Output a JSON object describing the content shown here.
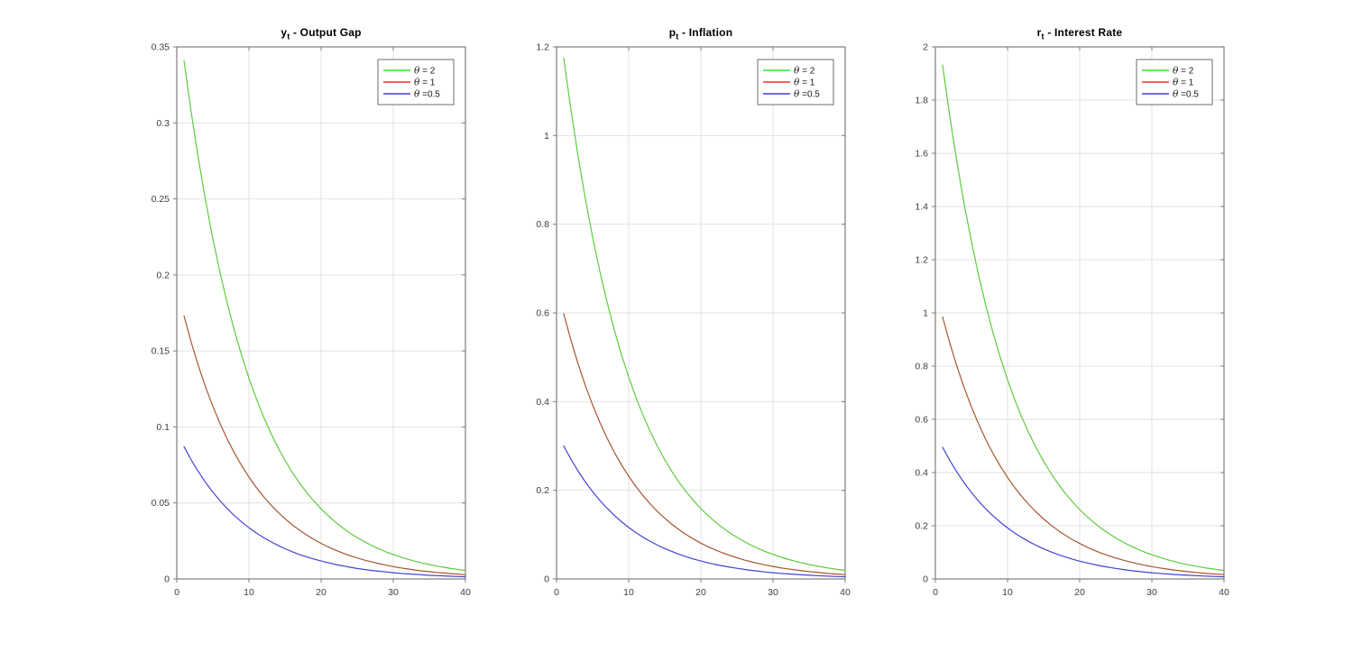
{
  "figure": {
    "background": "#ffffff",
    "kind": "matlab-style impulse response figure, 3 subplots"
  },
  "chart_style": {
    "box_color": "#7d7d7d",
    "grid_color": "#e2e2e2",
    "tick_label_color": "#3f3f3f",
    "title_color": "#000000",
    "legend_border_color": "#6e6e6e",
    "legend_background": "#ffffff"
  },
  "chart_data": [
    {
      "type": "line",
      "title": "y_t - Output Gap",
      "title_parts": {
        "var": "y",
        "sub": "t",
        "rest": " - Output Gap"
      },
      "xlabel": "",
      "ylabel": "",
      "xlim": [
        0,
        40
      ],
      "ylim": [
        0,
        0.35
      ],
      "grid": true,
      "legend_position": "top-right-inside",
      "xticks": [
        0,
        10,
        20,
        30,
        40
      ],
      "xtick_labels": [
        "0",
        "10",
        "20",
        "30",
        "40"
      ],
      "yticks": [
        0,
        0.05,
        0.1,
        0.15,
        0.2,
        0.25,
        0.3,
        0.35
      ],
      "ytick_labels": [
        "0",
        "0.05",
        "0.1",
        "0.15",
        "0.2",
        "0.25",
        "0.3",
        "0.35"
      ],
      "x": [
        1,
        2,
        3,
        4,
        5,
        6,
        7,
        8,
        9,
        10,
        11,
        12,
        13,
        14,
        15,
        16,
        17,
        18,
        19,
        20,
        21,
        22,
        23,
        24,
        25,
        26,
        27,
        28,
        29,
        30,
        31,
        32,
        33,
        34,
        35,
        36,
        37,
        38,
        39,
        40
      ],
      "series": [
        {
          "name": "θ = 2",
          "slug": "theta-2",
          "legend_sym": "θ",
          "legend_rest": " = 2",
          "legend_color": "#2ee82e",
          "line_color": "#5ecb3f",
          "values": [
            0.341,
            0.3069,
            0.2762,
            0.2486,
            0.2237,
            0.2014,
            0.1812,
            0.1631,
            0.1468,
            0.1321,
            0.1189,
            0.107,
            0.0963,
            0.0867,
            0.078,
            0.0702,
            0.0632,
            0.0569,
            0.0512,
            0.0461,
            0.0415,
            0.0373,
            0.0336,
            0.0302,
            0.0272,
            0.0245,
            0.022,
            0.0198,
            0.0178,
            0.0161,
            0.0145,
            0.013,
            0.0117,
            0.0105,
            0.0095,
            0.0085,
            0.0077,
            0.0069,
            0.0062,
            0.0056
          ]
        },
        {
          "name": "θ = 1",
          "slug": "theta-1",
          "legend_sym": "θ",
          "legend_rest": " = 1",
          "legend_color": "#ff2a2a",
          "line_color": "#a5562f",
          "values": [
            0.173,
            0.1557,
            0.1401,
            0.1261,
            0.1135,
            0.1022,
            0.0919,
            0.0827,
            0.0745,
            0.067,
            0.0603,
            0.0543,
            0.0489,
            0.044,
            0.0396,
            0.0356,
            0.0321,
            0.0289,
            0.026,
            0.0234,
            0.021,
            0.0189,
            0.017,
            0.0153,
            0.0138,
            0.0124,
            0.0112,
            0.0101,
            0.0091,
            0.0081,
            0.0073,
            0.0066,
            0.0059,
            0.0053,
            0.0048,
            0.0043,
            0.0039,
            0.0035,
            0.0032,
            0.0028
          ]
        },
        {
          "name": "θ =0.5",
          "slug": "theta-0p5",
          "legend_sym": "θ",
          "legend_rest": " =0.5",
          "legend_color": "#3c3cf0",
          "line_color": "#4343cf",
          "values": [
            0.087,
            0.0783,
            0.0705,
            0.0634,
            0.0571,
            0.0514,
            0.0462,
            0.0416,
            0.0375,
            0.0337,
            0.0303,
            0.0273,
            0.0246,
            0.0221,
            0.0199,
            0.0179,
            0.0161,
            0.0145,
            0.0131,
            0.0118,
            0.0106,
            0.0095,
            0.0086,
            0.0077,
            0.0069,
            0.0062,
            0.0056,
            0.0051,
            0.0046,
            0.0041,
            0.0037,
            0.0033,
            0.003,
            0.0027,
            0.0024,
            0.0022,
            0.002,
            0.0018,
            0.0016,
            0.0014
          ]
        }
      ]
    },
    {
      "type": "line",
      "title": "p_t - Inflation",
      "title_parts": {
        "var": "p",
        "sub": "t",
        "rest": " - Inflation"
      },
      "xlabel": "",
      "ylabel": "",
      "xlim": [
        0,
        40
      ],
      "ylim": [
        0,
        1.2
      ],
      "grid": true,
      "legend_position": "top-right-inside",
      "xticks": [
        0,
        10,
        20,
        30,
        40
      ],
      "xtick_labels": [
        "0",
        "10",
        "20",
        "30",
        "40"
      ],
      "yticks": [
        0,
        0.2,
        0.4,
        0.6,
        0.8,
        1,
        1.2
      ],
      "ytick_labels": [
        "0",
        "0.2",
        "0.4",
        "0.6",
        "0.8",
        "1",
        "1.2"
      ],
      "x": [
        1,
        2,
        3,
        4,
        5,
        6,
        7,
        8,
        9,
        10,
        11,
        12,
        13,
        14,
        15,
        16,
        17,
        18,
        19,
        20,
        21,
        22,
        23,
        24,
        25,
        26,
        27,
        28,
        29,
        30,
        31,
        32,
        33,
        34,
        35,
        36,
        37,
        38,
        39,
        40
      ],
      "series": [
        {
          "name": "θ = 2",
          "slug": "theta-2",
          "legend_sym": "θ",
          "legend_rest": " = 2",
          "legend_color": "#2ee82e",
          "line_color": "#5ecb3f",
          "values": [
            1.175,
            1.0575,
            0.9518,
            0.8566,
            0.7709,
            0.6938,
            0.6244,
            0.562,
            0.5058,
            0.4552,
            0.4097,
            0.3687,
            0.3319,
            0.2987,
            0.2688,
            0.2419,
            0.2177,
            0.196,
            0.1764,
            0.1587,
            0.1429,
            0.1286,
            0.1157,
            0.1041,
            0.0937,
            0.0844,
            0.0759,
            0.0683,
            0.0615,
            0.0553,
            0.0498,
            0.0448,
            0.0403,
            0.0363,
            0.0327,
            0.0294,
            0.0265,
            0.0238,
            0.0214,
            0.0193
          ]
        },
        {
          "name": "θ = 1",
          "slug": "theta-1",
          "legend_sym": "θ",
          "legend_rest": " = 1",
          "legend_color": "#ff2a2a",
          "line_color": "#a5562f",
          "values": [
            0.598,
            0.5382,
            0.4844,
            0.4359,
            0.3923,
            0.3531,
            0.3178,
            0.286,
            0.2574,
            0.2317,
            0.2085,
            0.1877,
            0.1689,
            0.152,
            0.1368,
            0.1231,
            0.1108,
            0.0997,
            0.0898,
            0.0808,
            0.0727,
            0.0654,
            0.0589,
            0.053,
            0.0477,
            0.0429,
            0.0386,
            0.0348,
            0.0313,
            0.0282,
            0.0253,
            0.0228,
            0.0205,
            0.0185,
            0.0166,
            0.015,
            0.0135,
            0.0121,
            0.0109,
            0.0098
          ]
        },
        {
          "name": "θ =0.5",
          "slug": "theta-0p5",
          "legend_sym": "θ",
          "legend_rest": " =0.5",
          "legend_color": "#3c3cf0",
          "line_color": "#4343cf",
          "values": [
            0.3,
            0.27,
            0.243,
            0.2187,
            0.1968,
            0.1771,
            0.1594,
            0.1435,
            0.1291,
            0.1162,
            0.1046,
            0.0941,
            0.0847,
            0.0763,
            0.0686,
            0.0618,
            0.0556,
            0.05,
            0.045,
            0.0405,
            0.0365,
            0.0328,
            0.0295,
            0.0266,
            0.0239,
            0.0215,
            0.0194,
            0.0174,
            0.0157,
            0.0141,
            0.0127,
            0.0114,
            0.0103,
            0.0093,
            0.0083,
            0.0075,
            0.0068,
            0.0061,
            0.0055,
            0.0049
          ]
        }
      ]
    },
    {
      "type": "line",
      "title": "r_t - Interest Rate",
      "title_parts": {
        "var": "r",
        "sub": "t",
        "rest": " - Interest Rate"
      },
      "xlabel": "",
      "ylabel": "",
      "xlim": [
        0,
        40
      ],
      "ylim": [
        0,
        2
      ],
      "grid": true,
      "legend_position": "top-right-inside",
      "xticks": [
        0,
        10,
        20,
        30,
        40
      ],
      "xtick_labels": [
        "0",
        "10",
        "20",
        "30",
        "40"
      ],
      "yticks": [
        0,
        0.2,
        0.4,
        0.6,
        0.8,
        1,
        1.2,
        1.4,
        1.6,
        1.8,
        2
      ],
      "ytick_labels": [
        "0",
        "0.2",
        "0.4",
        "0.6",
        "0.8",
        "1",
        "1.2",
        "1.4",
        "1.6",
        "1.8",
        "2"
      ],
      "x": [
        1,
        2,
        3,
        4,
        5,
        6,
        7,
        8,
        9,
        10,
        11,
        12,
        13,
        14,
        15,
        16,
        17,
        18,
        19,
        20,
        21,
        22,
        23,
        24,
        25,
        26,
        27,
        28,
        29,
        30,
        31,
        32,
        33,
        34,
        35,
        36,
        37,
        38,
        39,
        40
      ],
      "series": [
        {
          "name": "θ = 2",
          "slug": "theta-2",
          "legend_sym": "θ",
          "legend_rest": " = 2",
          "legend_color": "#2ee82e",
          "line_color": "#5ecb3f",
          "values": [
            1.932,
            1.7388,
            1.5649,
            1.4084,
            1.2676,
            1.1408,
            1.0267,
            0.9241,
            0.8317,
            0.7485,
            0.6736,
            0.6063,
            0.5457,
            0.4911,
            0.442,
            0.3978,
            0.358,
            0.3222,
            0.29,
            0.261,
            0.2349,
            0.2114,
            0.1903,
            0.1712,
            0.1541,
            0.1387,
            0.1248,
            0.1123,
            0.1011,
            0.091,
            0.0819,
            0.0737,
            0.0663,
            0.0597,
            0.0537,
            0.0484,
            0.0435,
            0.0392,
            0.0353,
            0.0317
          ]
        },
        {
          "name": "θ = 1",
          "slug": "theta-1",
          "legend_sym": "θ",
          "legend_rest": " = 1",
          "legend_color": "#ff2a2a",
          "line_color": "#a5562f",
          "values": [
            0.985,
            0.8865,
            0.7979,
            0.7181,
            0.6463,
            0.5816,
            0.5235,
            0.4711,
            0.424,
            0.3816,
            0.3434,
            0.3091,
            0.2782,
            0.2504,
            0.2253,
            0.2028,
            0.1825,
            0.1643,
            0.1478,
            0.1331,
            0.1198,
            0.1078,
            0.097,
            0.0873,
            0.0786,
            0.0707,
            0.0636,
            0.0573,
            0.0515,
            0.0464,
            0.0418,
            0.0376,
            0.0338,
            0.0304,
            0.0274,
            0.0247,
            0.0222,
            0.02,
            0.018,
            0.0162
          ]
        },
        {
          "name": "θ =0.5",
          "slug": "theta-0p5",
          "legend_sym": "θ",
          "legend_rest": " =0.5",
          "legend_color": "#3c3cf0",
          "line_color": "#4343cf",
          "values": [
            0.495,
            0.4455,
            0.401,
            0.3609,
            0.3248,
            0.2923,
            0.2631,
            0.2368,
            0.2131,
            0.1918,
            0.1726,
            0.1553,
            0.1398,
            0.1258,
            0.1132,
            0.1019,
            0.0917,
            0.0826,
            0.0743,
            0.0669,
            0.0602,
            0.0542,
            0.0487,
            0.0439,
            0.0395,
            0.0355,
            0.032,
            0.0288,
            0.0259,
            0.0233,
            0.021,
            0.0189,
            0.017,
            0.0153,
            0.0138,
            0.0124,
            0.0112,
            0.01,
            0.009,
            0.0081
          ]
        }
      ]
    }
  ]
}
